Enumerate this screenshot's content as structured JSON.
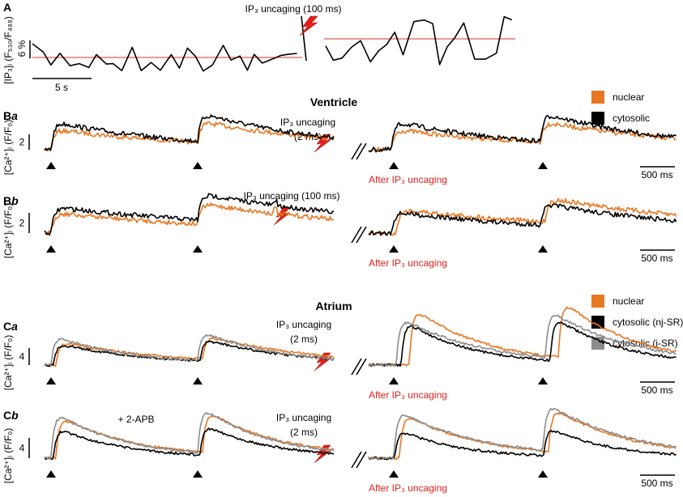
{
  "panel_a": {
    "label": "A",
    "annotation": "IP₃ uncaging (100 ms)",
    "y_label": "[IP₃]ᵢ (F₅₃₀/F₄₈₈)",
    "scale_y": "6 %",
    "scale_x": "5 s"
  },
  "ventricle": {
    "title": "Ventricle",
    "legend": [
      "nuclear",
      "cytosolic"
    ]
  },
  "atrium": {
    "title": "Atrium",
    "legend": [
      "nuclear",
      "cytosolic (nj-SR)",
      "cytosolic (j-SR)"
    ]
  },
  "rows": [
    {
      "letter": "B",
      "sub": "a",
      "y_label": "[Ca²⁺]ᵢ (F/F₀)",
      "scale": "2",
      "annotation": [
        "IP₃ uncaging",
        "(2 ms)"
      ],
      "after": "After IP₃ uncaging",
      "time_scale": "500 ms"
    },
    {
      "letter": "B",
      "sub": "b",
      "y_label": "[Ca²⁺]ᵢ (F/F₀)",
      "scale": "2",
      "annotation": [
        "IP₃ uncaging (100 ms)"
      ],
      "after": "After IP₃ uncaging",
      "time_scale": "500 ms"
    },
    {
      "letter": "C",
      "sub": "a",
      "y_label": "[Ca²⁺]ᵢ (F/F₀)",
      "scale": "4",
      "annotation": [
        "IP₃ uncaging",
        "(2 ms)"
      ],
      "after": "After IP₃ uncaging",
      "time_scale": "500 ms"
    },
    {
      "letter": "C",
      "sub": "b",
      "y_label": "[Ca²⁺]ᵢ (F/F₀)",
      "scale": "4",
      "annotation": [
        "IP₃ uncaging",
        "(2 ms)"
      ],
      "after": "After IP₃ uncaging",
      "time_scale": "500 ms",
      "note": "+ 2-APB"
    }
  ]
}
